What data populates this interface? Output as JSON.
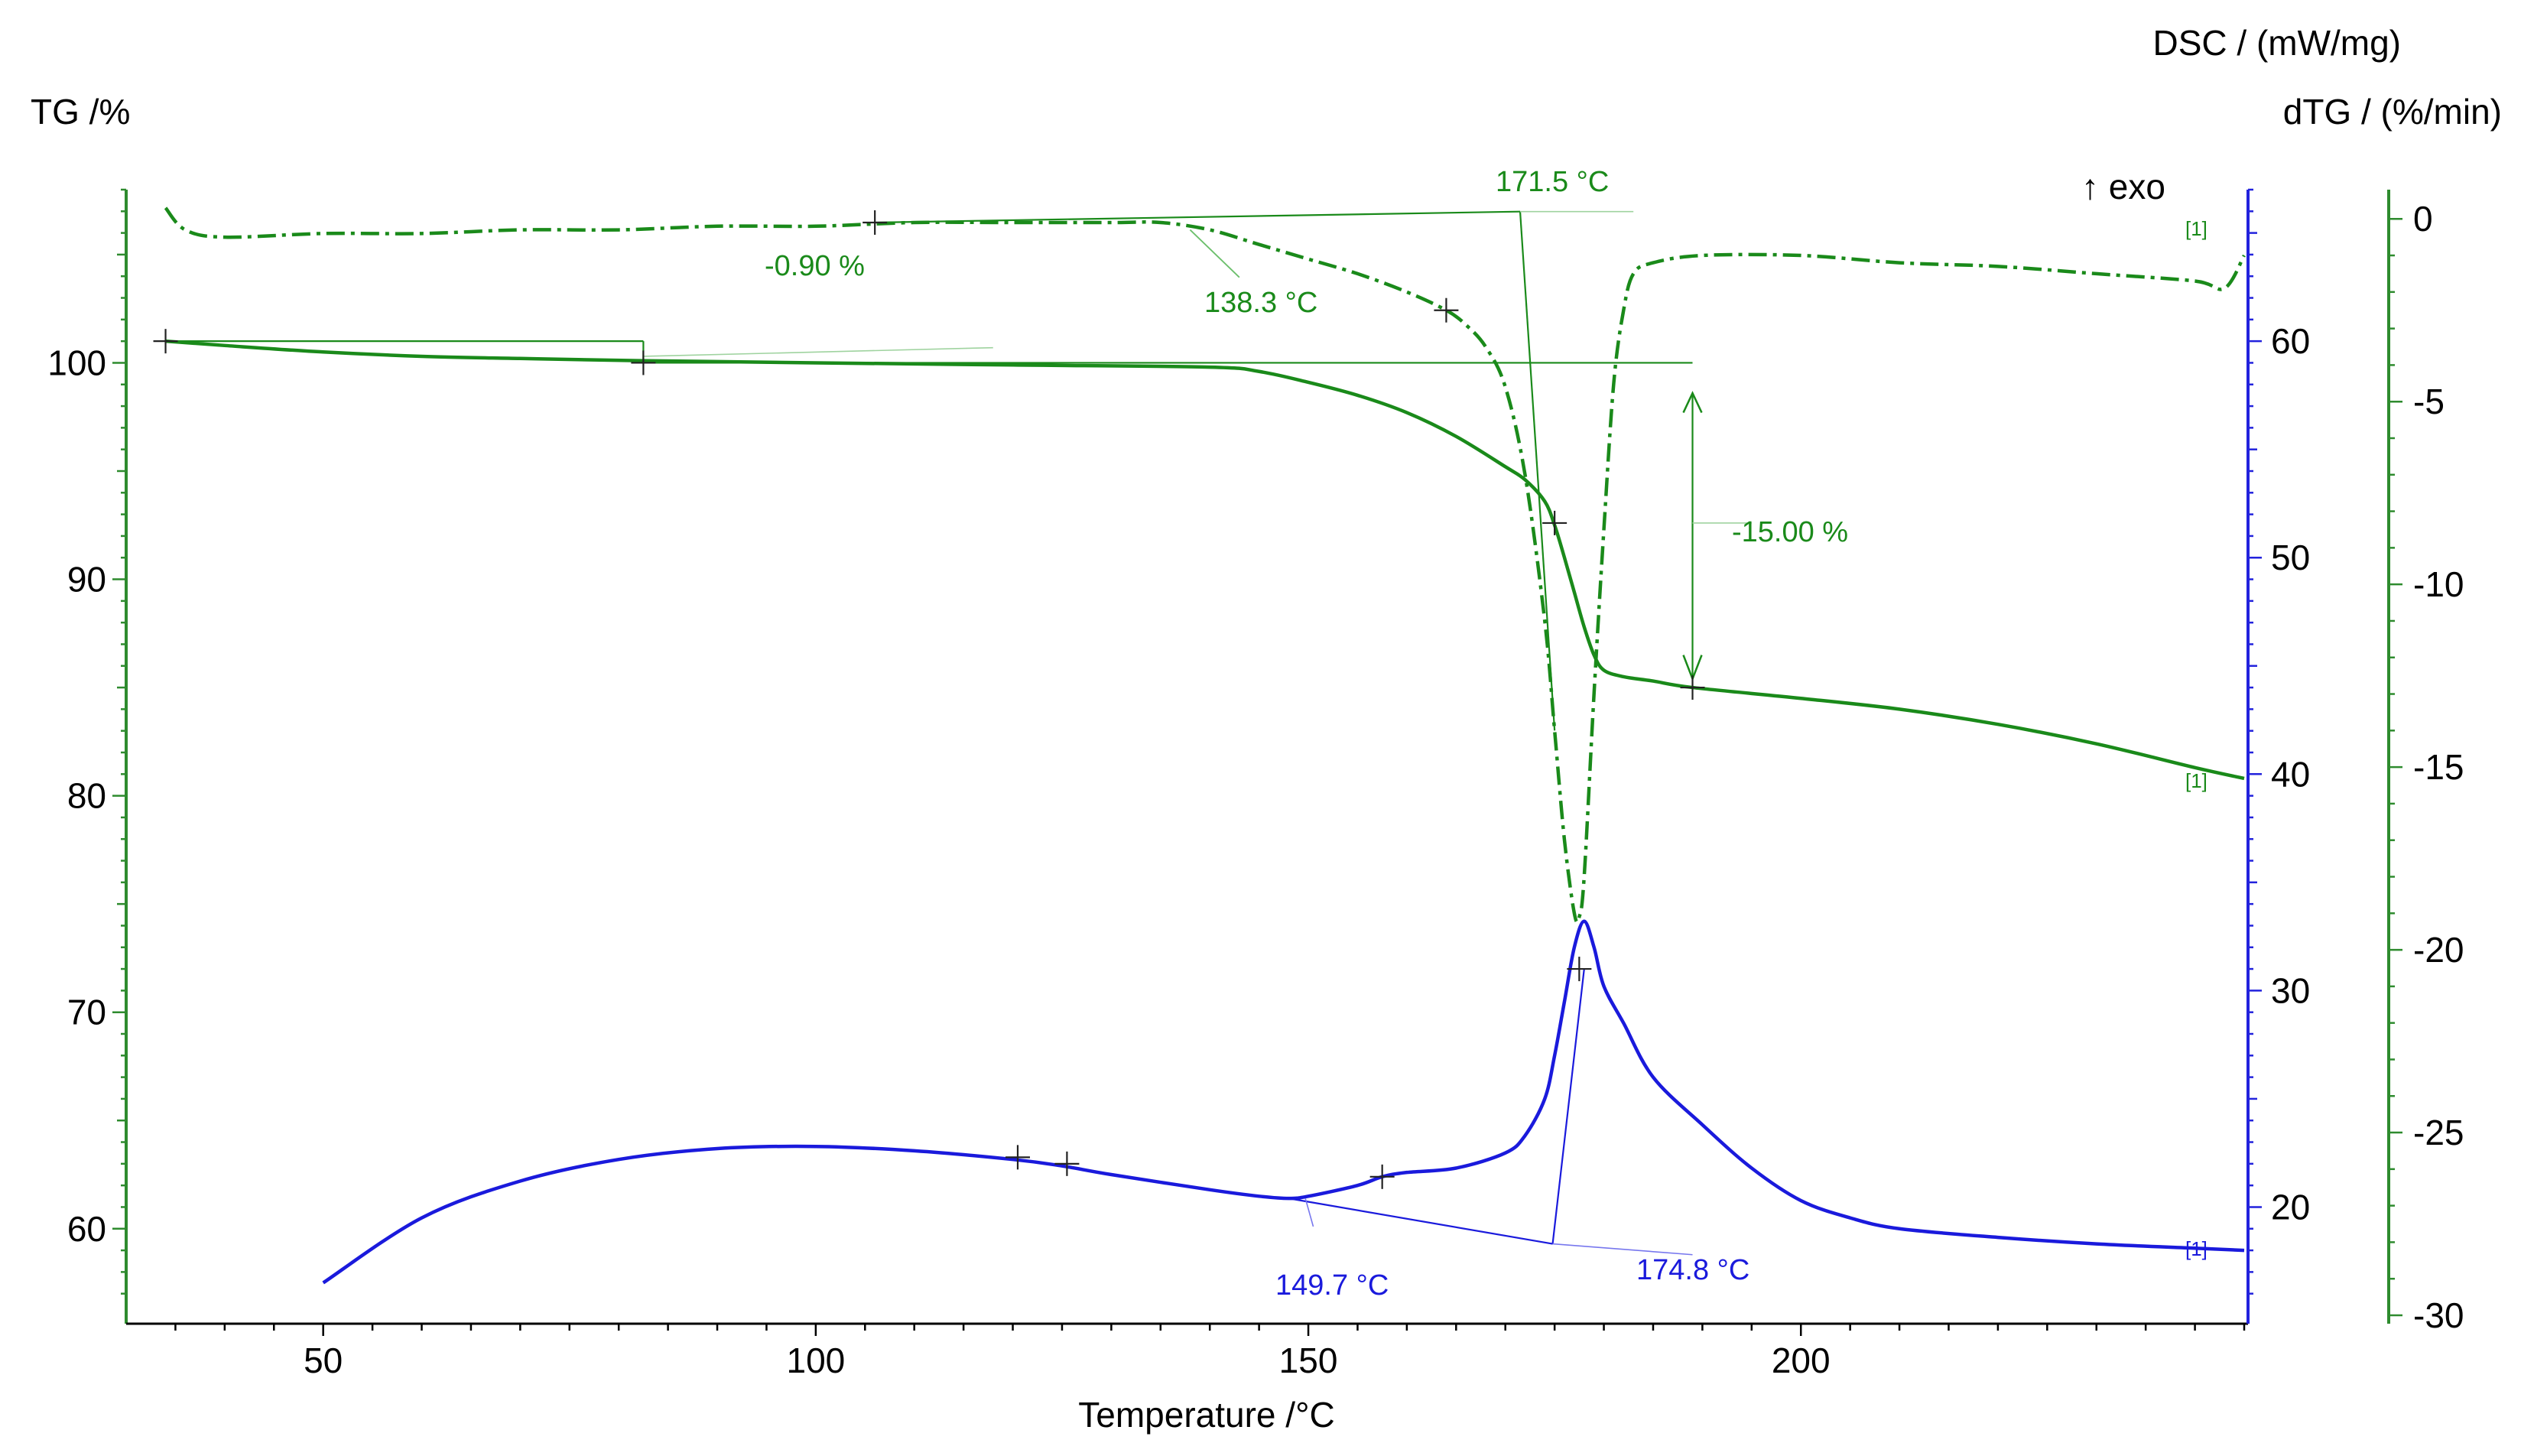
{
  "chart_data": {
    "type": "line",
    "title": "",
    "xlabel": "Temperature /°C",
    "x_ticks": [
      50,
      100,
      150,
      200
    ],
    "xlim": [
      30,
      245
    ],
    "axes": {
      "tg": {
        "label": "TG /%",
        "ticks": [
          60,
          70,
          80,
          90,
          100
        ],
        "ylim": [
          56,
          108
        ],
        "color": "#000000",
        "axis_color": "#2e8b2e"
      },
      "dsc": {
        "label": "DSC / (mW/mg)",
        "ticks": [
          20,
          30,
          40,
          50,
          60
        ],
        "ylim": [
          15,
          67
        ],
        "color": "#000000",
        "axis_color": "#2222dd"
      },
      "dtg": {
        "label": "dTG / (%/min)",
        "ticks": [
          0,
          -5,
          -10,
          -15,
          -20,
          -25,
          -30
        ],
        "ylim": [
          -30,
          0.8
        ],
        "color": "#000000",
        "axis_color": "#2e8b2e"
      }
    },
    "exo_label": "↑ exo",
    "series": [
      {
        "name": "TG",
        "axis": "tg",
        "color": "#1a8a1a",
        "dash": "solid",
        "points": [
          [
            34,
            101
          ],
          [
            40,
            100.8
          ],
          [
            50,
            100.5
          ],
          [
            60,
            100.3
          ],
          [
            70,
            100.2
          ],
          [
            82,
            100.1
          ],
          [
            100,
            100
          ],
          [
            120,
            99.9
          ],
          [
            140,
            99.8
          ],
          [
            145,
            99.6
          ],
          [
            150,
            99.1
          ],
          [
            155,
            98.5
          ],
          [
            160,
            97.7
          ],
          [
            165,
            96.6
          ],
          [
            170,
            95.2
          ],
          [
            172,
            94.6
          ],
          [
            174,
            93.6
          ],
          [
            175,
            92.5
          ],
          [
            176,
            91
          ],
          [
            177,
            89.4
          ],
          [
            178,
            87.8
          ],
          [
            179,
            86.5
          ],
          [
            180,
            85.8
          ],
          [
            182,
            85.5
          ],
          [
            185,
            85.3
          ],
          [
            189,
            85
          ],
          [
            200,
            84.5
          ],
          [
            210,
            84
          ],
          [
            220,
            83.3
          ],
          [
            230,
            82.4
          ],
          [
            240,
            81.3
          ],
          [
            245,
            80.8
          ]
        ],
        "end_marker": "[1]"
      },
      {
        "name": "dTG",
        "axis": "dtg",
        "color": "#1a8a1a",
        "dash": "dashdot",
        "points": [
          [
            34,
            0.3
          ],
          [
            36,
            -0.3
          ],
          [
            40,
            -0.5
          ],
          [
            50,
            -0.4
          ],
          [
            60,
            -0.4
          ],
          [
            70,
            -0.3
          ],
          [
            80,
            -0.3
          ],
          [
            90,
            -0.2
          ],
          [
            100,
            -0.2
          ],
          [
            110,
            -0.1
          ],
          [
            120,
            -0.1
          ],
          [
            130,
            -0.1
          ],
          [
            135,
            -0.1
          ],
          [
            140,
            -0.3
          ],
          [
            145,
            -0.7
          ],
          [
            150,
            -1.1
          ],
          [
            155,
            -1.5
          ],
          [
            160,
            -2.0
          ],
          [
            164,
            -2.5
          ],
          [
            166,
            -2.9
          ],
          [
            168,
            -3.5
          ],
          [
            170,
            -4.6
          ],
          [
            172,
            -7
          ],
          [
            174,
            -11
          ],
          [
            175,
            -14
          ],
          [
            176,
            -17
          ],
          [
            177,
            -19
          ],
          [
            177.5,
            -19.1
          ],
          [
            178,
            -18
          ],
          [
            179,
            -13
          ],
          [
            180,
            -8.5
          ],
          [
            181,
            -4.5
          ],
          [
            182,
            -2.5
          ],
          [
            183,
            -1.5
          ],
          [
            185,
            -1.2
          ],
          [
            190,
            -1.0
          ],
          [
            200,
            -1.0
          ],
          [
            210,
            -1.2
          ],
          [
            220,
            -1.3
          ],
          [
            230,
            -1.5
          ],
          [
            240,
            -1.7
          ],
          [
            243,
            -1.9
          ],
          [
            245,
            -1.0
          ]
        ],
        "end_marker": "[1]"
      },
      {
        "name": "DSC",
        "axis": "dsc",
        "color": "#1a1adc",
        "dash": "solid",
        "points": [
          [
            50,
            16.5
          ],
          [
            60,
            19.5
          ],
          [
            70,
            21.2
          ],
          [
            80,
            22.2
          ],
          [
            90,
            22.7
          ],
          [
            100,
            22.8
          ],
          [
            110,
            22.6
          ],
          [
            120,
            22.2
          ],
          [
            125,
            21.9
          ],
          [
            130,
            21.5
          ],
          [
            140,
            20.8
          ],
          [
            145,
            20.5
          ],
          [
            148,
            20.4
          ],
          [
            150,
            20.5
          ],
          [
            155,
            21.0
          ],
          [
            157.5,
            21.4
          ],
          [
            160,
            21.6
          ],
          [
            165,
            21.8
          ],
          [
            170,
            22.5
          ],
          [
            172,
            23.3
          ],
          [
            174,
            25
          ],
          [
            175,
            27
          ],
          [
            176,
            29.5
          ],
          [
            177,
            32
          ],
          [
            178,
            33.2
          ],
          [
            179,
            32
          ],
          [
            180,
            30.2
          ],
          [
            182,
            28.5
          ],
          [
            185,
            26
          ],
          [
            190,
            23.8
          ],
          [
            195,
            21.8
          ],
          [
            200,
            20.3
          ],
          [
            205,
            19.5
          ],
          [
            210,
            19.0
          ],
          [
            220,
            18.6
          ],
          [
            230,
            18.3
          ],
          [
            240,
            18.1
          ],
          [
            245,
            18.0
          ]
        ],
        "end_marker": "[1]"
      }
    ],
    "annotations": [
      {
        "text": "171.5 °C",
        "color": "green"
      },
      {
        "text": "-0.90 %",
        "color": "green"
      },
      {
        "text": "138.3 °C",
        "color": "green"
      },
      {
        "text": "-15.00 %",
        "color": "green"
      },
      {
        "text": "149.7 °C",
        "color": "blue"
      },
      {
        "text": "174.8 °C",
        "color": "blue"
      }
    ]
  }
}
